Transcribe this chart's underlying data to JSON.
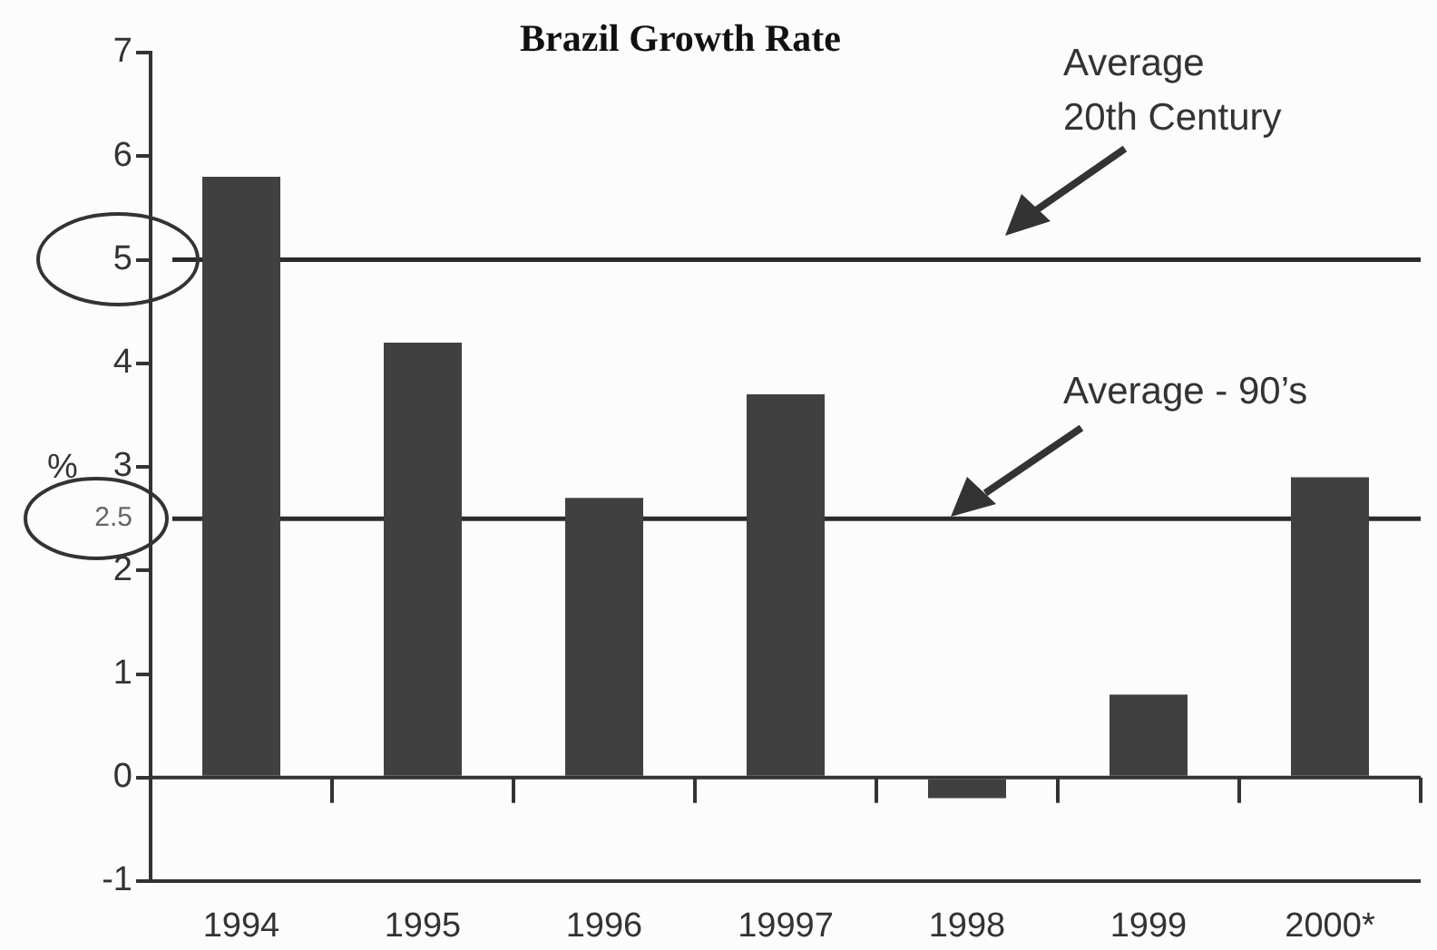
{
  "chart_data": {
    "type": "bar",
    "title": "Brazil Growth Rate",
    "ylabel": "%",
    "categories": [
      "1994",
      "1995",
      "1996",
      "19997",
      "1998",
      "1999",
      "2000*"
    ],
    "values": [
      5.8,
      4.2,
      2.7,
      3.7,
      -0.2,
      0.8,
      2.9
    ],
    "color": "#404040",
    "ylim": [
      -1,
      7
    ],
    "yticks": [
      -1,
      0,
      1,
      2,
      {
        "value": 2.5,
        "label": "2.5"
      },
      3,
      4,
      5,
      6,
      7
    ],
    "grid": false,
    "legend": false,
    "ref_lines": [
      {
        "axis": "y",
        "value": 5,
        "color": "#2b2b2b"
      },
      {
        "axis": "y",
        "value": 2.5,
        "label": "Average - 90’s",
        "color": "#2b2b2b"
      }
    ],
    "annotations": [
      "Average\n20th Century"
    ]
  }
}
